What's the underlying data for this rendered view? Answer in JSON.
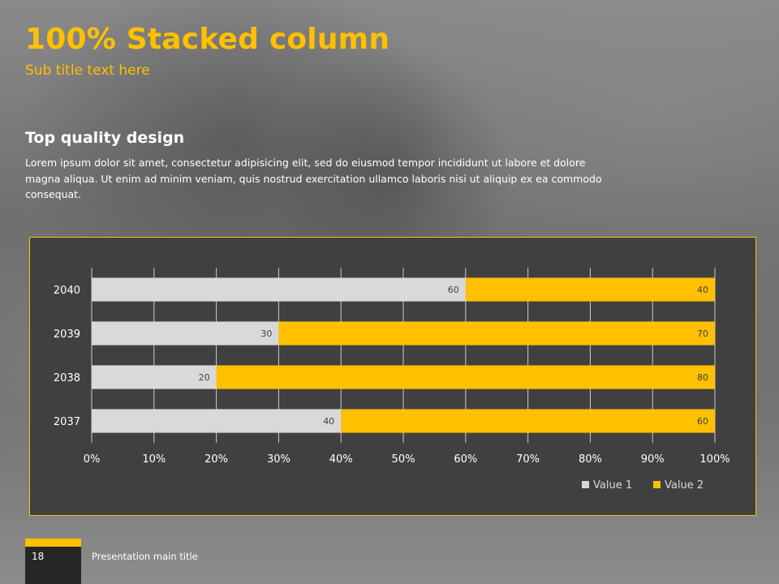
{
  "slide": {
    "title": "100% Stacked column",
    "subtitle": "Sub title text here",
    "heading": "Top quality design",
    "body": "Lorem ipsum dolor sit amet, consectetur adipisicing elit, sed do eiusmod tempor incididunt ut labore et dolore magna aliqua. Ut enim ad minim veniam, quis nostrud exercitation ullamco laboris nisi ut aliquip ex ea commodo consequat.",
    "page_number": "18",
    "footer_title": "Presentation main title"
  },
  "colors": {
    "accent": "#ffc000",
    "series1": "#d9d9d9",
    "series2": "#ffc000",
    "chart_bg": "#404040",
    "grid": "#d9d9d9",
    "text": "#ffffff"
  },
  "chart_data": {
    "type": "bar",
    "orientation": "horizontal",
    "stacked": "percent",
    "categories": [
      "2040",
      "2039",
      "2038",
      "2037"
    ],
    "series": [
      {
        "name": "Value 1",
        "values": [
          60,
          30,
          20,
          40
        ]
      },
      {
        "name": "Value 2",
        "values": [
          40,
          70,
          80,
          60
        ]
      }
    ],
    "xlim": [
      0,
      100
    ],
    "x_ticks": [
      "0%",
      "10%",
      "20%",
      "30%",
      "40%",
      "50%",
      "60%",
      "70%",
      "80%",
      "90%",
      "100%"
    ],
    "grid": true,
    "legend": "bottom-right"
  }
}
